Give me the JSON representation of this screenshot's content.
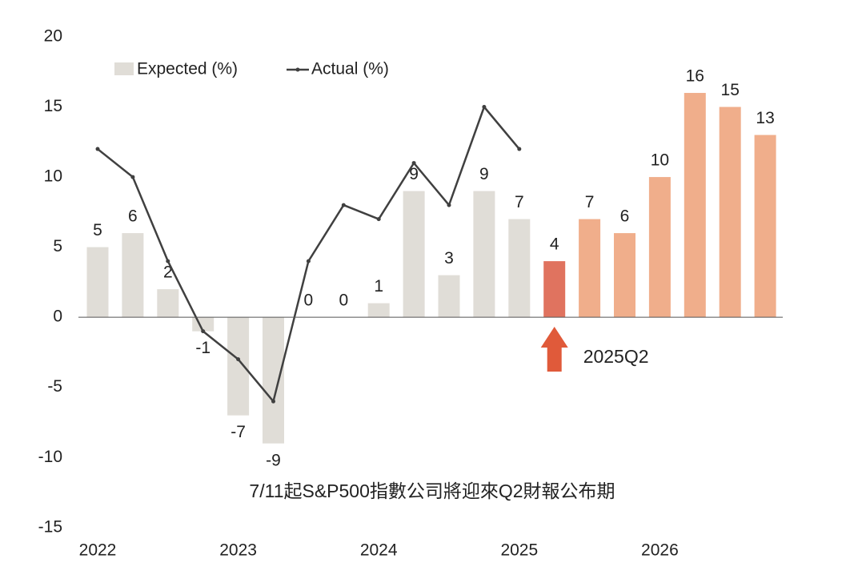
{
  "chart_data": {
    "type": "bar",
    "categories": [
      "2022",
      null,
      null,
      null,
      "2023",
      null,
      null,
      null,
      "2024",
      null,
      null,
      null,
      "2025",
      null,
      null,
      null,
      "2026",
      null,
      null,
      null
    ],
    "series": [
      {
        "name": "Expected (%)",
        "type": "bar",
        "colors": [
          "#e0ddd7",
          "#e0ddd7",
          "#e0ddd7",
          "#e0ddd7",
          "#e0ddd7",
          "#e0ddd7",
          "#e0ddd7",
          "#e0ddd7",
          "#e0ddd7",
          "#e0ddd7",
          "#e0ddd7",
          "#e0ddd7",
          "#e0ddd7",
          "#e0735f",
          "#f0ae8b",
          "#f0ae8b",
          "#f0ae8b",
          "#f0ae8b",
          "#f0ae8b",
          "#f0ae8b"
        ],
        "values": [
          5,
          6,
          2,
          -1,
          -7,
          -9,
          0,
          0,
          1,
          9,
          3,
          9,
          7,
          4,
          7,
          6,
          10,
          16,
          15,
          13
        ]
      },
      {
        "name": "Actual (%)",
        "type": "line",
        "color": "#404040",
        "values": [
          12,
          10,
          4,
          -1,
          -3,
          -6,
          4,
          8,
          7,
          11,
          8,
          15,
          12,
          null,
          null,
          null,
          null,
          null,
          null,
          null
        ]
      }
    ],
    "ylim": [
      -15,
      20
    ],
    "yticks": [
      -15,
      -10,
      -5,
      0,
      5,
      10,
      15,
      20
    ],
    "annotations": [
      {
        "text": "2025Q2",
        "category": 13,
        "color": "#c0161d"
      },
      {
        "text": "7/11起S&P500指數公司將迎來Q2財報公布期",
        "color": "#c0161d"
      }
    ]
  }
}
